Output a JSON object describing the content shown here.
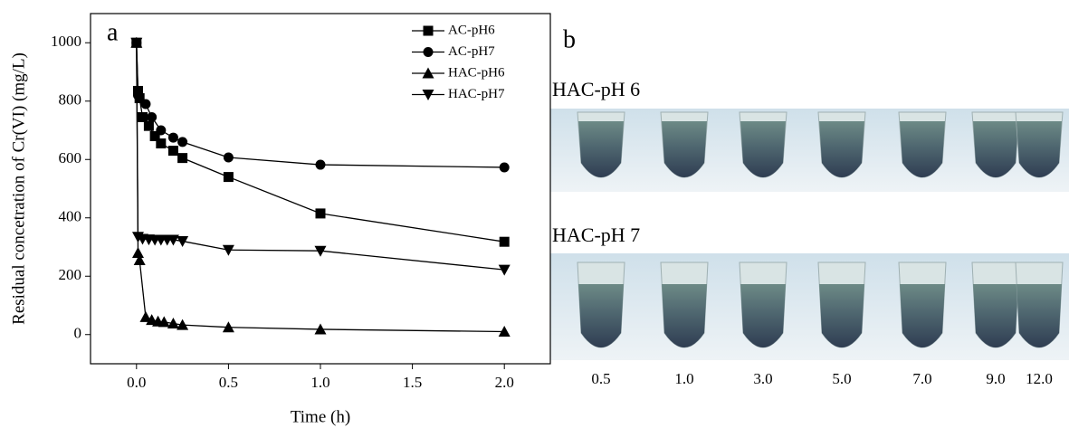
{
  "chart_data": {
    "type": "line",
    "panel_label": "a",
    "x_label": "Time (h)",
    "y_label": "Residual concetration of Cr(VI) (mg/L)",
    "xlim": [
      -0.25,
      2.25
    ],
    "ylim": [
      -100,
      1100
    ],
    "xticks": [
      {
        "value": 0,
        "label": "0.0"
      },
      {
        "value": 0.5,
        "label": "0.5"
      },
      {
        "value": 1,
        "label": "1.0"
      },
      {
        "value": 1.5,
        "label": "1.5"
      },
      {
        "value": 2,
        "label": "2.0"
      }
    ],
    "yticks": [
      0,
      200,
      400,
      600,
      800,
      1000
    ],
    "legend": "upper right",
    "series": [
      {
        "name": "AC-pH6",
        "color": "#000000",
        "marker": "square",
        "x": [
          0,
          0.0083,
          0.0167,
          0.033,
          0.067,
          0.1,
          0.133,
          0.2,
          0.25,
          0.5,
          1,
          2
        ],
        "values": [
          1000,
          835,
          810,
          745,
          715,
          680,
          655,
          630,
          605,
          540,
          415,
          318
        ]
      },
      {
        "name": "AC-pH7",
        "color": "#000000",
        "marker": "circle",
        "x": [
          0,
          0.0083,
          0.05,
          0.083,
          0.133,
          0.2,
          0.25,
          0.5,
          1,
          2
        ],
        "values": [
          1000,
          820,
          790,
          745,
          700,
          675,
          660,
          607,
          582,
          573
        ]
      },
      {
        "name": "HAC-pH6",
        "color": "#000000",
        "marker": "triangle-up",
        "x": [
          0,
          0.0083,
          0.0167,
          0.05,
          0.083,
          0.117,
          0.15,
          0.2,
          0.25,
          0.5,
          1,
          2
        ],
        "values": [
          1000,
          280,
          255,
          60,
          50,
          45,
          43,
          38,
          33,
          25,
          18,
          10
        ]
      },
      {
        "name": "HAC-pH7",
        "color": "#000000",
        "marker": "triangle-down",
        "x": [
          0,
          0.0083,
          0.033,
          0.067,
          0.1,
          0.133,
          0.167,
          0.2,
          0.25,
          0.5,
          1,
          2
        ],
        "values": [
          1000,
          335,
          328,
          326,
          325,
          325,
          325,
          325,
          320,
          290,
          287,
          222
        ]
      }
    ]
  },
  "panel_b": {
    "label": "b",
    "rows": [
      "HAC-pH 6",
      "HAC-pH 7"
    ],
    "times": [
      "0.5",
      "1.0",
      "3.0",
      "5.0",
      "7.0",
      "9.0",
      "12.0"
    ]
  }
}
